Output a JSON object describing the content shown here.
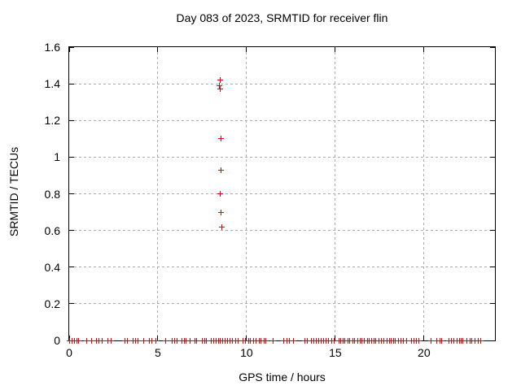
{
  "chart_data": {
    "type": "scatter",
    "title": "Day 083 of 2023, SRMTID for receiver flin",
    "xlabel": "GPS time / hours",
    "ylabel": "SRMTID / TECUs",
    "xlim": [
      0,
      24
    ],
    "ylim": [
      0,
      1.6
    ],
    "x_ticks": [
      0,
      5,
      10,
      15,
      20
    ],
    "x_tick_labels": [
      "0",
      "5",
      "10",
      "15",
      "20"
    ],
    "y_ticks": [
      0,
      0.2,
      0.4,
      0.6,
      0.8,
      1.0,
      1.2,
      1.4,
      1.6
    ],
    "y_tick_labels": [
      "0",
      "0.2",
      "0.4",
      "0.6",
      "0.8",
      "1",
      "1.2",
      "1.4",
      "1.6"
    ],
    "grid": true,
    "legend_position": "none",
    "marker_style": "plus",
    "marker_color": "#ee0000",
    "grid_color": "#ababab",
    "background_color": "#ffffff",
    "series": [
      {
        "name": "SRMTID",
        "elevated_points": [
          [
            8.51,
            1.42
          ],
          [
            8.48,
            1.39
          ],
          [
            8.53,
            1.37
          ],
          [
            8.55,
            1.1
          ],
          [
            8.55,
            0.93
          ],
          [
            8.53,
            0.8
          ],
          [
            8.57,
            0.7
          ],
          [
            8.62,
            0.62
          ]
        ],
        "baseline_y": 0,
        "baseline_x": [
          0.0,
          0.15,
          0.3,
          0.42,
          0.55,
          1.0,
          1.27,
          1.53,
          1.67,
          1.87,
          2.2,
          2.36,
          3.15,
          3.3,
          3.6,
          3.75,
          3.9,
          4.2,
          4.54,
          4.67,
          4.88,
          5.46,
          5.8,
          5.93,
          6.06,
          6.34,
          6.48,
          6.57,
          6.83,
          7.08,
          7.2,
          7.5,
          7.64,
          7.73,
          8.0,
          8.15,
          8.3,
          8.4,
          8.51,
          8.66,
          8.8,
          8.93,
          9.07,
          9.2,
          9.4,
          9.54,
          9.8,
          9.95,
          10.1,
          10.2,
          10.4,
          10.55,
          10.7,
          10.82,
          11.0,
          11.1,
          11.5,
          12.1,
          12.27,
          12.4,
          12.64,
          13.3,
          13.42,
          13.66,
          13.8,
          13.94,
          14.07,
          14.2,
          14.35,
          14.5,
          14.63,
          14.8,
          14.95,
          15.2,
          15.3,
          15.42,
          15.55,
          15.7,
          15.83,
          15.97,
          16.1,
          16.25,
          16.4,
          16.5,
          16.65,
          16.8,
          16.9,
          17.05,
          17.2,
          17.3,
          17.45,
          17.6,
          17.75,
          17.9,
          18.05,
          18.15,
          18.3,
          18.4,
          18.55,
          18.7,
          18.85,
          19.0,
          19.3,
          19.44,
          19.58,
          19.7,
          20.4,
          20.74,
          20.88,
          21.0,
          21.4,
          21.55,
          21.7,
          21.85,
          22.0,
          22.1,
          22.2,
          22.4,
          22.6,
          22.7,
          22.87,
          23.05,
          23.2
        ]
      }
    ]
  }
}
